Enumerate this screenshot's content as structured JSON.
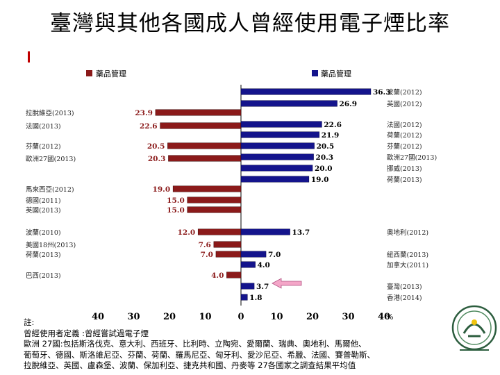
{
  "slide": {
    "title": "臺灣與其他各國成人曾經使用電子煙比率"
  },
  "chart_data": {
    "type": "bar",
    "legend": [
      {
        "label": "藥品管理",
        "color": "#8b1a1a",
        "side": "left"
      },
      {
        "label": "藥品管理",
        "color": "#14148c",
        "side": "right"
      }
    ],
    "unit": "%",
    "x_ticks": [
      40,
      30,
      20,
      10,
      0,
      10,
      20,
      30,
      40
    ],
    "xlim": [
      -40,
      40
    ],
    "left_series": [
      {
        "label": "拉脫維亞(2013)",
        "value": 23.9
      },
      {
        "label": "法國(2013)",
        "value": 22.6
      },
      {
        "label": "芬蘭(2012)",
        "value": 20.5
      },
      {
        "label": "歐洲27國(2013)",
        "value": 20.3
      },
      {
        "label": "馬來西亞(2012)",
        "value": 19.0
      },
      {
        "label": "德國(2011)",
        "value": 15.0
      },
      {
        "label": "英國(2013)",
        "value": 15.0
      },
      {
        "label": "波蘭(2010)",
        "value": 12.0
      },
      {
        "label": "美國18州(2013)",
        "value": 7.6
      },
      {
        "label": "荷蘭(2013)",
        "value": 7.0
      },
      {
        "label": "巴西(2013)",
        "value": 4.0
      }
    ],
    "right_series": [
      {
        "label": "波蘭(2012)",
        "value": 36.3
      },
      {
        "label": "英國(2012)",
        "value": 26.9
      },
      {
        "label": "法國(2012)",
        "value": 22.6
      },
      {
        "label": "荷蘭(2012)",
        "value": 21.9
      },
      {
        "label": "芬蘭(2012)",
        "value": 20.5
      },
      {
        "label": "歐洲27國(2013)",
        "value": 20.3
      },
      {
        "label": "挪威(2013)",
        "value": 20.0
      },
      {
        "label": "荷蘭(2013)",
        "value": 19.0
      },
      {
        "label": "奧地利(2012)",
        "value": 13.7
      },
      {
        "label": "紐西蘭(2013)",
        "value": 7.0
      },
      {
        "label": "加拿大(2011)",
        "value": 4.0
      },
      {
        "label": "臺灣(2013)",
        "value": 3.7
      },
      {
        "label": "香港(2014)",
        "value": 1.8
      }
    ]
  },
  "notes": {
    "line1": "註:",
    "line2": "曾經使用者定義 :曾經嘗試過電子煙",
    "line3": "歐洲 27國:包括斯洛伐克、意大利、西班牙、比利時、立陶宛、愛爾蘭、瑞典、奧地利、馬爾他、",
    "line4": "葡萄牙、德國、斯洛維尼亞、芬蘭、荷蘭、羅馬尼亞、匈牙利、愛沙尼亞、希臘、法國、賽普勒斯、",
    "line5": "拉脫維亞、英國、盧森堡、波蘭、保加利亞、捷克共和國、丹麥等 27各國家之調查結果平均值"
  }
}
